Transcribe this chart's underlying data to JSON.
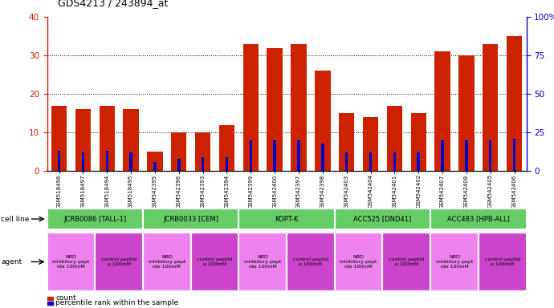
{
  "title": "GDS4213 / 243894_at",
  "samples": [
    "GSM518496",
    "GSM518497",
    "GSM518494",
    "GSM518495",
    "GSM542395",
    "GSM542396",
    "GSM542393",
    "GSM542394",
    "GSM542399",
    "GSM542400",
    "GSM542397",
    "GSM542398",
    "GSM542403",
    "GSM542404",
    "GSM542401",
    "GSM542402",
    "GSM542407",
    "GSM542408",
    "GSM542405",
    "GSM542406"
  ],
  "counts": [
    17,
    16,
    17,
    16,
    5,
    10,
    10,
    12,
    33,
    32,
    33,
    26,
    15,
    14,
    17,
    15,
    31,
    30,
    33,
    35
  ],
  "percentiles": [
    13,
    12,
    13,
    12,
    6,
    8,
    9,
    9,
    20,
    20,
    20,
    18,
    12,
    12,
    12,
    12,
    20,
    20,
    20,
    21
  ],
  "ylim_left": [
    0,
    40
  ],
  "ylim_right": [
    0,
    100
  ],
  "yticks_left": [
    0,
    10,
    20,
    30,
    40
  ],
  "yticks_right": [
    0,
    25,
    50,
    75,
    100
  ],
  "ytick_labels_right": [
    "0",
    "25",
    "50",
    "75",
    "100%"
  ],
  "bar_color": "#cc2200",
  "percentile_color": "#0000cc",
  "cell_lines": [
    {
      "label": "JCRB0086 [TALL-1]",
      "start": 0,
      "end": 4,
      "color": "#66cc66"
    },
    {
      "label": "JCRB0033 [CEM]",
      "start": 4,
      "end": 8,
      "color": "#66cc66"
    },
    {
      "label": "KOPT-K",
      "start": 8,
      "end": 12,
      "color": "#66cc66"
    },
    {
      "label": "ACC525 [DND41]",
      "start": 12,
      "end": 16,
      "color": "#66cc66"
    },
    {
      "label": "ACC483 [HPB-ALL]",
      "start": 16,
      "end": 20,
      "color": "#66cc66"
    }
  ],
  "agents": [
    {
      "label": "NBD\ninhibitory pept\nide 100mM",
      "color": "#ee82ee",
      "start": 0,
      "end": 2
    },
    {
      "label": "control peptid\ne 100mM",
      "color": "#cc44cc",
      "start": 2,
      "end": 4
    },
    {
      "label": "NBD\ninhibitory pept\nide 100mM",
      "color": "#ee82ee",
      "start": 4,
      "end": 6
    },
    {
      "label": "control peptid\ne 100mM",
      "color": "#cc44cc",
      "start": 6,
      "end": 8
    },
    {
      "label": "NBD\ninhibitory pept\nide 100mM",
      "color": "#ee82ee",
      "start": 8,
      "end": 10
    },
    {
      "label": "control peptid\ne 100mM",
      "color": "#cc44cc",
      "start": 10,
      "end": 12
    },
    {
      "label": "NBD\ninhibitory pept\nide 100mM",
      "color": "#ee82ee",
      "start": 12,
      "end": 14
    },
    {
      "label": "control peptid\ne 100mM",
      "color": "#cc44cc",
      "start": 14,
      "end": 16
    },
    {
      "label": "NBD\ninhibitory pept\nide 100mM",
      "color": "#ee82ee",
      "start": 16,
      "end": 18
    },
    {
      "label": "control peptid\ne 100mM",
      "color": "#cc44cc",
      "start": 18,
      "end": 20
    }
  ],
  "legend_items": [
    {
      "label": "count",
      "color": "#cc2200"
    },
    {
      "label": "percentile rank within the sample",
      "color": "#0000cc"
    }
  ]
}
